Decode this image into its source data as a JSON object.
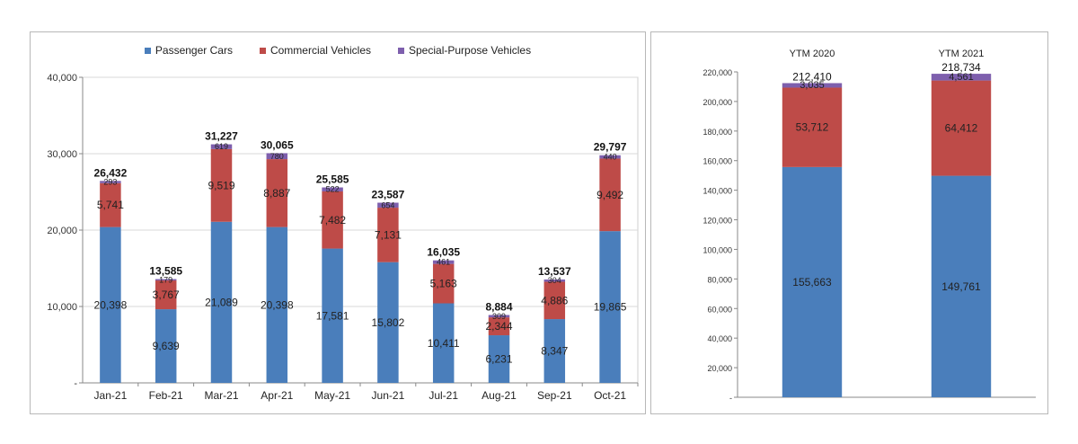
{
  "chart_data": [
    {
      "type": "bar",
      "stacked": true,
      "categories": [
        "Jan-21",
        "Feb-21",
        "Mar-21",
        "Apr-21",
        "May-21",
        "Jun-21",
        "Jul-21",
        "Aug-21",
        "Sep-21",
        "Oct-21"
      ],
      "series": [
        {
          "name": "Passenger Cars",
          "color": "#4a7ebb",
          "values": [
            20398,
            9639,
            21089,
            20398,
            17581,
            15802,
            10411,
            6231,
            8347,
            19865
          ],
          "labels": [
            "20,398",
            "9,639",
            "21,089",
            "20,398",
            "17,581",
            "15,802",
            "10,411",
            "6,231",
            "8,347",
            "19,865"
          ]
        },
        {
          "name": "Commercial Vehicles",
          "color": "#be4b48",
          "values": [
            5741,
            3767,
            9519,
            8887,
            7482,
            7131,
            5163,
            2344,
            4886,
            9492
          ],
          "labels": [
            "5,741",
            "3,767",
            "9,519",
            "8,887",
            "7,482",
            "7,131",
            "5,163",
            "2,344",
            "4,886",
            "9,492"
          ]
        },
        {
          "name": "Special-Purpose Vehicles",
          "color": "#7e5fad",
          "values": [
            293,
            179,
            619,
            780,
            522,
            654,
            461,
            309,
            304,
            440
          ],
          "labels": [
            "293",
            "179",
            "619",
            "780",
            "522",
            "654",
            "461",
            "309",
            "304",
            "440"
          ]
        }
      ],
      "totals": [
        "26,432",
        "13,585",
        "31,227",
        "30,065",
        "25,585",
        "23,587",
        "16,035",
        "8,884",
        "13,537",
        "29,797"
      ],
      "ylim": [
        0,
        40000
      ],
      "yticks": [
        "-",
        "10,000",
        "20,000",
        "30,000",
        "40,000"
      ],
      "legend": "top",
      "grid": true
    },
    {
      "type": "bar",
      "stacked": true,
      "categories": [
        "YTM 2020",
        "YTM 2021"
      ],
      "series": [
        {
          "name": "Passenger Cars",
          "color": "#4a7ebb",
          "values": [
            155663,
            149761
          ],
          "labels": [
            "155,663",
            "149,761"
          ]
        },
        {
          "name": "Commercial Vehicles",
          "color": "#be4b48",
          "values": [
            53712,
            64412
          ],
          "labels": [
            "53,712",
            "64,412"
          ]
        },
        {
          "name": "Special-Purpose Vehicles",
          "color": "#7e5fad",
          "values": [
            3035,
            4561
          ],
          "labels": [
            "3,035",
            "4,561"
          ]
        }
      ],
      "totals": [
        "212,410",
        "218,734"
      ],
      "ylim": [
        0,
        220000
      ],
      "yticks": [
        "-",
        "20,000",
        "40,000",
        "60,000",
        "80,000",
        "100,000",
        "120,000",
        "140,000",
        "160,000",
        "180,000",
        "200,000",
        "220,000"
      ],
      "grid": false
    }
  ]
}
